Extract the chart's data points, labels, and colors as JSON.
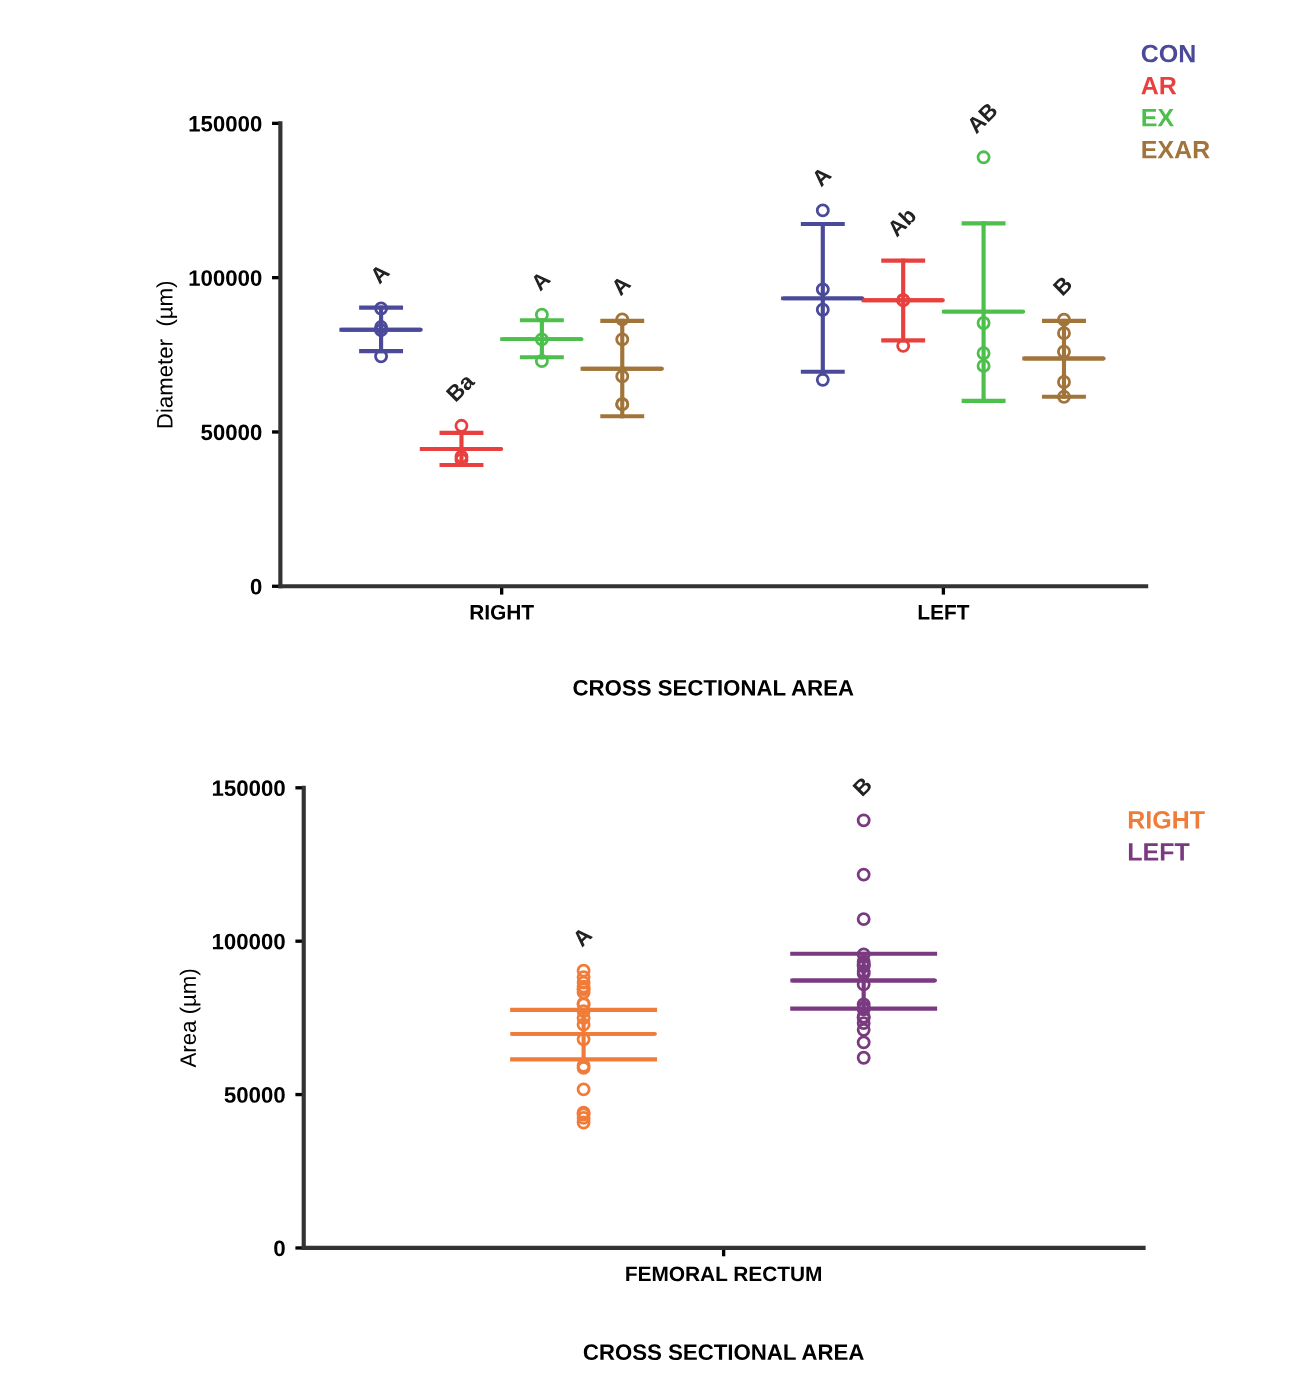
{
  "chart_data": [
    {
      "type": "box",
      "categories": [
        "RIGHT",
        "LEFT"
      ],
      "xlabel": "CROSS SECTIONAL AREA",
      "ylabel": "Diameter  (µm)",
      "ylim": [
        0,
        150000
      ],
      "yticks": [
        0,
        50000,
        100000,
        150000
      ],
      "legend": "top right",
      "marker": "circle",
      "annotations": [
        "A",
        "Ba",
        "A",
        "A",
        "A",
        "Ab",
        "AB",
        "B"
      ],
      "series": [
        {
          "name": "CON",
          "color": "#4b4a9a",
          "boxes": [
            {
              "low": 76200,
              "q1": 83100,
              "median": 83100,
              "q3": 83100,
              "high": 90300,
              "outliers": [
                83000,
                90000,
                84000,
                74500
              ]
            },
            {
              "low": 69500,
              "q1": 93300,
              "median": 93300,
              "q3": 93300,
              "high": 117400,
              "outliers": [
                121800,
                96200,
                89600,
                66900
              ]
            }
          ]
        },
        {
          "name": "AR",
          "color": "#e8403f",
          "boxes": [
            {
              "low": 39300,
              "q1": 44500,
              "median": 44500,
              "q3": 44500,
              "high": 49700,
              "outliers": [
                52000,
                42000,
                41000
              ]
            },
            {
              "low": 79700,
              "q1": 92700,
              "median": 92700,
              "q3": 92700,
              "high": 105500,
              "outliers": [
                92700,
                92700,
                77900
              ]
            }
          ]
        },
        {
          "name": "EX",
          "color": "#4cbf4c",
          "boxes": [
            {
              "low": 74200,
              "q1": 80100,
              "median": 80100,
              "q3": 80100,
              "high": 86200,
              "outliers": [
                88000,
                80000,
                73000
              ]
            },
            {
              "low": 60100,
              "q1": 89000,
              "median": 89000,
              "q3": 89000,
              "high": 117600,
              "outliers": [
                139000,
                85300,
                75500,
                71400
              ]
            }
          ]
        },
        {
          "name": "EXAR",
          "color": "#a0743a",
          "boxes": [
            {
              "low": 55100,
              "q1": 70500,
              "median": 70500,
              "q3": 70500,
              "high": 86000,
              "outliers": [
                86500,
                80000,
                68000,
                59000,
                59000
              ]
            },
            {
              "low": 61400,
              "q1": 73800,
              "median": 73800,
              "q3": 73800,
              "high": 86000,
              "outliers": [
                86400,
                82000,
                76000,
                66200,
                61400
              ]
            }
          ]
        }
      ]
    },
    {
      "type": "box",
      "categories": [
        "FEMORAL RECTUM"
      ],
      "xlabel": "CROSS SECTIONAL AREA",
      "ylabel": "Area (µm)",
      "ylim": [
        0,
        150000
      ],
      "yticks": [
        0,
        50000,
        100000,
        150000
      ],
      "legend": "top right",
      "marker": "circle",
      "annotations": [
        "A",
        "B"
      ],
      "series": [
        {
          "name": "RIGHT",
          "color": "#f07c3a",
          "boxes": [
            {
              "low": 61500,
              "q1": 69800,
              "median": 69800,
              "q3": 69800,
              "high": 77600,
              "outliers": [
                90400,
                88300,
                86500,
                85200,
                84400,
                84400,
                83300,
                79600,
                79400,
                77200,
                75000,
                72800,
                68000,
                59400,
                58700,
                51700,
                44100,
                43500,
                42400,
                40900
              ]
            }
          ]
        },
        {
          "name": "LEFT",
          "color": "#7a3a80",
          "boxes": [
            {
              "low": 78000,
              "q1": 87200,
              "median": 87200,
              "q3": 87200,
              "high": 95900,
              "outliers": [
                139400,
                121700,
                107200,
                95700,
                93300,
                92600,
                92200,
                91800,
                90200,
                89400,
                85900,
                79400,
                78300,
                77800,
                75400,
                75000,
                73300,
                71100,
                67000,
                62000
              ]
            }
          ]
        }
      ]
    }
  ]
}
